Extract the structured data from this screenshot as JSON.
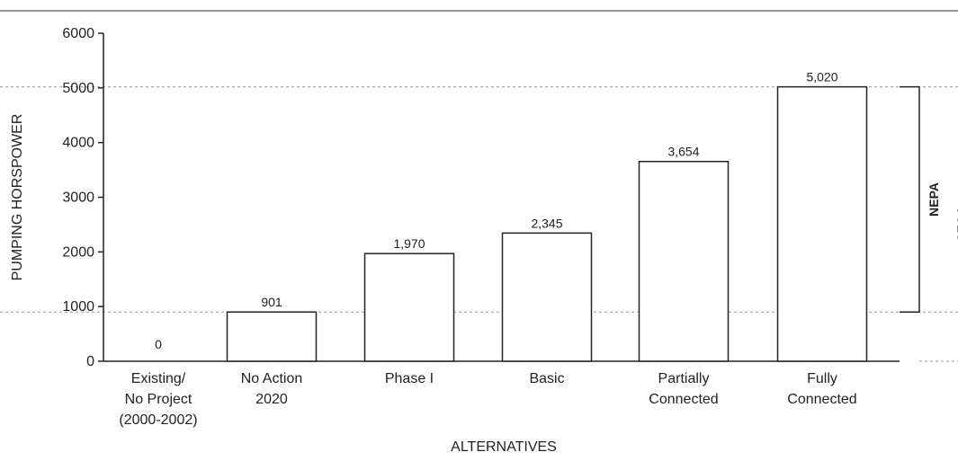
{
  "chart_data": {
    "type": "bar",
    "xlabel": "ALTERNATIVES",
    "ylabel": "PUMPING HORSPOWER",
    "ylim": [
      0,
      6000
    ],
    "yticks": [
      "0",
      "1000",
      "2000",
      "3000",
      "4000",
      "5000",
      "6000"
    ],
    "categories": [
      [
        "Existing/",
        "No Project",
        "(2000-2002)"
      ],
      [
        "No Action",
        "2020"
      ],
      [
        "Phase I"
      ],
      [
        "Basic"
      ],
      [
        "Partially",
        "Connected"
      ],
      [
        "Fully",
        "Connected"
      ]
    ],
    "values": [
      0,
      901,
      1970,
      2345,
      3654,
      5020
    ],
    "value_labels": [
      "0",
      "901",
      "1,970",
      "2,345",
      "3,654",
      "5,020"
    ],
    "reference_lines": [
      901,
      5020
    ],
    "brackets": [
      {
        "label": "NEPA",
        "from": 901,
        "to": 5020
      },
      {
        "label": "CEQA",
        "from": 0,
        "to": 5020
      }
    ],
    "grid": false,
    "legend": "none"
  },
  "colors": {
    "bar_fill": "#ffffff",
    "bar_stroke": "#222222",
    "ref_line": "#999999"
  }
}
